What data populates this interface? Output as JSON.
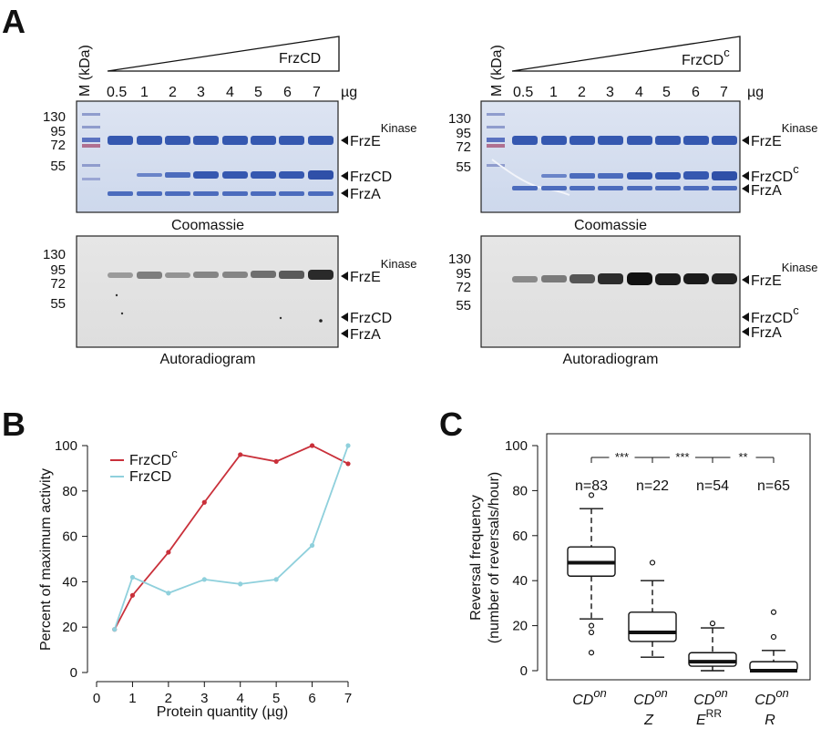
{
  "panels": {
    "a": "A",
    "b": "B",
    "c": "C"
  },
  "gel_left": {
    "protein": "FrzCD",
    "protein_sup": "",
    "marker_label": "M",
    "kda_label": "(kDa)",
    "lane_labels": [
      "0.5",
      "1",
      "2",
      "3",
      "4",
      "5",
      "6",
      "7"
    ],
    "unit": "µg",
    "mw_markers": [
      "130",
      "95",
      "72",
      "55"
    ],
    "coomassie_label": "Coomassie",
    "autoradiogram_label": "Autoradiogram",
    "band_frze": "FrzE",
    "band_frze_sup": "Kinase",
    "band_frzcd": "FrzCD",
    "band_frzcd_sup": "",
    "band_frza": "FrzA"
  },
  "gel_right": {
    "protein": "FrzCD",
    "protein_sup": "c",
    "marker_label": "M",
    "kda_label": "(kDa)",
    "lane_labels": [
      "0.5",
      "1",
      "2",
      "3",
      "4",
      "5",
      "6",
      "7"
    ],
    "unit": "µg",
    "mw_markers": [
      "130",
      "95",
      "72",
      "55"
    ],
    "coomassie_label": "Coomassie",
    "autoradiogram_label": "Autoradiogram",
    "band_frze": "FrzE",
    "band_frze_sup": "Kinase",
    "band_frzcd": "FrzCD",
    "band_frzcd_sup": "c",
    "band_frza": "FrzA"
  },
  "chart_data": [
    {
      "type": "line",
      "xlabel": "Protein quantity (µg)",
      "ylabel": "Percent of maximum activity",
      "xlim": [
        0,
        7
      ],
      "ylim": [
        0,
        100
      ],
      "xticks": [
        "0",
        "1",
        "2",
        "3",
        "4",
        "5",
        "6",
        "7"
      ],
      "yticks": [
        "0",
        "20",
        "40",
        "60",
        "80",
        "100"
      ],
      "grid": false,
      "legend_position": "top-left",
      "series": [
        {
          "name": "FrzCD",
          "name_sup": "c",
          "color": "#c9303a",
          "x": [
            0.5,
            1,
            2,
            3,
            4,
            5,
            6,
            7
          ],
          "y": [
            19,
            34,
            53,
            75,
            96,
            93,
            100,
            92
          ]
        },
        {
          "name": "FrzCD",
          "name_sup": "",
          "color": "#8fd0dc",
          "x": [
            0.5,
            1,
            2,
            3,
            4,
            5,
            6,
            7
          ],
          "y": [
            19,
            42,
            35,
            41,
            39,
            41,
            56,
            100
          ]
        }
      ]
    },
    {
      "type": "box",
      "ylabel_line1": "Reversal frequency",
      "ylabel_line2": "(number of reversals/hour)",
      "ylim": [
        0,
        100
      ],
      "yticks": [
        "0",
        "20",
        "40",
        "60",
        "80",
        "100"
      ],
      "grid": false,
      "groups": [
        {
          "label": "CD",
          "label_sup": "on",
          "label2": "",
          "label2_sup": "",
          "n": "n=83",
          "whisker_low": 23,
          "q1": 42,
          "median": 48,
          "q3": 55,
          "whisker_high": 72,
          "outliers": [
            78,
            20,
            17,
            8
          ]
        },
        {
          "label": "CD",
          "label_sup": "on",
          "label2": "Z",
          "label2_sup": "",
          "n": "n=22",
          "whisker_low": 6,
          "q1": 13,
          "median": 17,
          "q3": 26,
          "whisker_high": 40,
          "outliers": [
            48
          ]
        },
        {
          "label": "CD",
          "label_sup": "on",
          "label2": "E",
          "label2_sup": "RR",
          "n": "n=54",
          "whisker_low": 0,
          "q1": 2,
          "median": 4,
          "q3": 8,
          "whisker_high": 19,
          "outliers": [
            21
          ]
        },
        {
          "label": "CD",
          "label_sup": "on",
          "label2": "R",
          "label2_sup": "",
          "n": "n=65",
          "whisker_low": 0,
          "q1": 0,
          "median": 0,
          "q3": 4,
          "whisker_high": 9,
          "outliers": [
            26,
            15
          ]
        }
      ],
      "significance": [
        "***",
        "***",
        "**"
      ]
    }
  ]
}
